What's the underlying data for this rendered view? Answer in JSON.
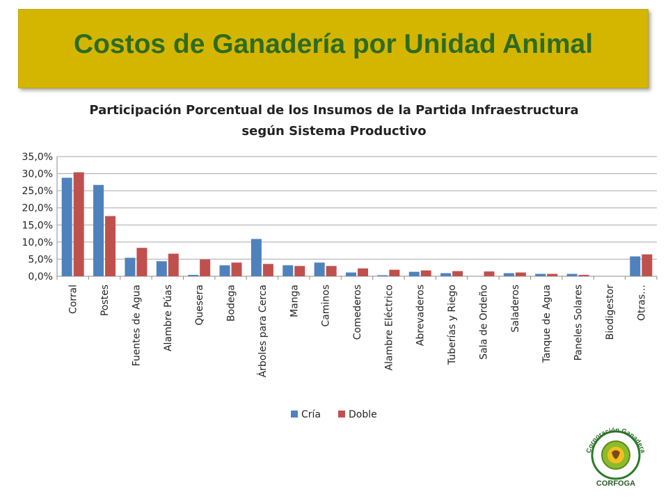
{
  "banner": {
    "title": "Costos de Ganadería por Unidad Animal"
  },
  "logo": {
    "text_top": "Corporación Ganadera",
    "text_bottom": "CORFOGA"
  },
  "colors": {
    "banner_bg": "#d4b600",
    "banner_text": "#2e6b22",
    "cria": "#4f81bd",
    "doble": "#c0504d"
  },
  "chart_data": {
    "type": "bar",
    "title_line1": "Participación Porcentual de los Insumos de la Partida Infraestructura",
    "title_line2": "según Sistema Productivo",
    "categories": [
      "Corral",
      "Postes",
      "Fuentes de Agua",
      "Alambre Púas",
      "Quesera",
      "Bodega",
      "Árboles para Cerca",
      "Manga",
      "Caminos",
      "Comederos",
      "Alambre Eléctrico",
      "Abrevaderos",
      "Tuberías y Riego",
      "Sala de Ordeño",
      "Saladeros",
      "Tanque de Agua",
      "Paneles Solares",
      "Biodigestor",
      "Otras…"
    ],
    "series": [
      {
        "name": "Cría",
        "color": "#4f81bd",
        "values": [
          28.8,
          26.7,
          5.4,
          4.4,
          0.4,
          3.2,
          10.9,
          3.2,
          4.0,
          1.1,
          0.3,
          1.3,
          0.9,
          0.0,
          0.9,
          0.7,
          0.7,
          0.0,
          5.8
        ]
      },
      {
        "name": "Doble",
        "color": "#c0504d",
        "values": [
          30.4,
          17.6,
          8.3,
          6.6,
          4.9,
          4.0,
          3.6,
          3.0,
          3.0,
          2.3,
          1.9,
          1.7,
          1.5,
          1.4,
          1.1,
          0.7,
          0.4,
          0.0,
          6.4
        ]
      }
    ],
    "y_ticks": [
      "0,0%",
      "5,0%",
      "10,0%",
      "15,0%",
      "20,0%",
      "25,0%",
      "30,0%",
      "35,0%"
    ],
    "ylim": [
      0,
      35
    ],
    "grid": true,
    "legend": "bottom"
  }
}
